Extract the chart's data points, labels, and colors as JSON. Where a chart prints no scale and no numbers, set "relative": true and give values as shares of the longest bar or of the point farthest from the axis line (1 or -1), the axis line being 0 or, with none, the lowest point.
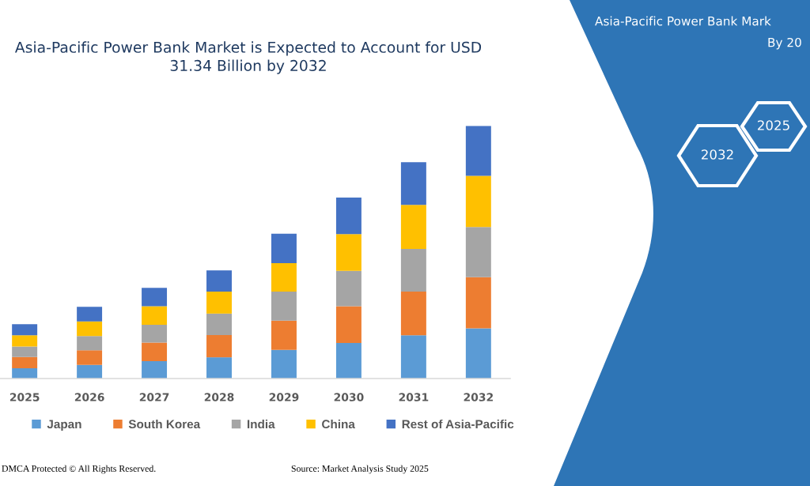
{
  "chart_data": {
    "type": "bar",
    "title": "Asia-Pacific Power Bank Market is Expected to Account for USD 31.34 Billion by 2032",
    "categories": [
      "2025",
      "2026",
      "2027",
      "2028",
      "2029",
      "2030",
      "2031",
      "2032"
    ],
    "stacked": true,
    "relative": true,
    "legend": "bottom",
    "tick_labels": "x",
    "series": [
      {
        "name": "Japan",
        "color": "#5b9bd5",
        "values": [
          0.041,
          0.054,
          0.069,
          0.084,
          0.113,
          0.141,
          0.171,
          0.199
        ]
      },
      {
        "name": "South Korea",
        "color": "#ed7d31",
        "values": [
          0.044,
          0.058,
          0.073,
          0.088,
          0.116,
          0.145,
          0.173,
          0.202
        ]
      },
      {
        "name": "India",
        "color": "#a5a5a5",
        "values": [
          0.042,
          0.056,
          0.071,
          0.085,
          0.115,
          0.14,
          0.169,
          0.199
        ]
      },
      {
        "name": "China",
        "color": "#ffc000",
        "values": [
          0.044,
          0.058,
          0.073,
          0.087,
          0.113,
          0.146,
          0.174,
          0.202
        ]
      },
      {
        "name": "Rest of Asia-Pacific",
        "color": "#4472c4",
        "values": [
          0.044,
          0.058,
          0.073,
          0.084,
          0.116,
          0.144,
          0.169,
          0.198
        ]
      }
    ],
    "annotations": [
      "Asia-Pacific Power Bank Mark",
      "By 20",
      "2032",
      "2025",
      "DMCA Protected © All Rights Reserved.",
      "Source: Market Analysis Study 2025"
    ]
  }
}
